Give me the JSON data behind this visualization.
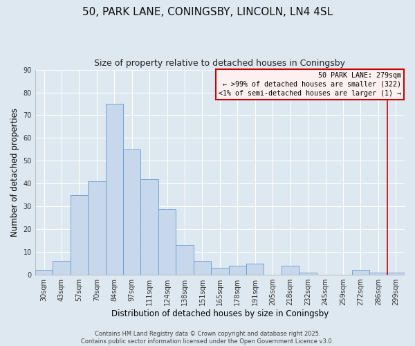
{
  "title": "50, PARK LANE, CONINGSBY, LINCOLN, LN4 4SL",
  "subtitle": "Size of property relative to detached houses in Coningsby",
  "xlabel": "Distribution of detached houses by size in Coningsby",
  "ylabel": "Number of detached properties",
  "bar_color": "#c8d8ec",
  "bar_edge_color": "#6699cc",
  "categories": [
    "30sqm",
    "43sqm",
    "57sqm",
    "70sqm",
    "84sqm",
    "97sqm",
    "111sqm",
    "124sqm",
    "138sqm",
    "151sqm",
    "165sqm",
    "178sqm",
    "191sqm",
    "205sqm",
    "218sqm",
    "232sqm",
    "245sqm",
    "259sqm",
    "272sqm",
    "286sqm",
    "299sqm"
  ],
  "values": [
    2,
    6,
    35,
    41,
    75,
    55,
    42,
    29,
    13,
    6,
    3,
    4,
    5,
    0,
    4,
    1,
    0,
    0,
    2,
    1,
    1
  ],
  "ylim": [
    0,
    90
  ],
  "yticks": [
    0,
    10,
    20,
    30,
    40,
    50,
    60,
    70,
    80,
    90
  ],
  "vline_x_index": 19,
  "vline_color": "#cc0000",
  "legend_title": "50 PARK LANE: 279sqm",
  "legend_line1": "← >99% of detached houses are smaller (322)",
  "legend_line2": "<1% of semi-detached houses are larger (1) →",
  "legend_box_color": "#fdf0f0",
  "legend_box_edge": "#cc0000",
  "footer1": "Contains HM Land Registry data © Crown copyright and database right 2025.",
  "footer2": "Contains public sector information licensed under the Open Government Licence v3.0.",
  "bg_color": "#dde8f0",
  "plot_bg_color": "#dde8f0",
  "grid_color": "#ffffff",
  "title_fontsize": 11,
  "subtitle_fontsize": 9,
  "tick_fontsize": 7,
  "axis_label_fontsize": 8.5
}
